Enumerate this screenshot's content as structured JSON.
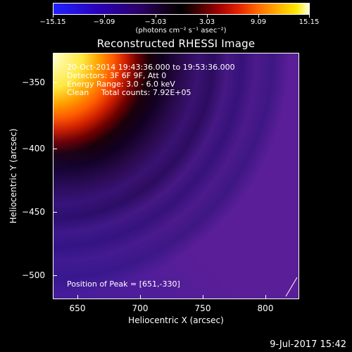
{
  "colorbar": {
    "tick_labels": [
      "−15.15",
      "−9.09",
      "−3.03",
      "3.03",
      "9.09",
      "15.15"
    ],
    "units": "(photons cm⁻² s⁻¹ asec⁻²)"
  },
  "image": {
    "title": "Reconstructed RHESSI Image",
    "info_lines": [
      "20-Oct-2014 19:43:36.000 to 19:53:36.000",
      "Detectors: 3F 6F 9F, Att 0",
      "Energy Range: 3.0 - 6.0 keV",
      "Clean     Total counts: 7.92E+05"
    ],
    "peak_position": "Position of Peak = [651,-330]"
  },
  "axes": {
    "x_title": "Heliocentric X (arcsec)",
    "y_title": "Heliocentric Y (arcsec)",
    "x_tick_labels": [
      "650",
      "700",
      "750",
      "800"
    ],
    "y_tick_labels": [
      "−350",
      "−400",
      "−450",
      "−500"
    ]
  },
  "footer": {
    "date": "9-Jul-2017 15:42"
  },
  "colors": {
    "background": "#000000",
    "plot_dominant": "#4f1a8c"
  }
}
